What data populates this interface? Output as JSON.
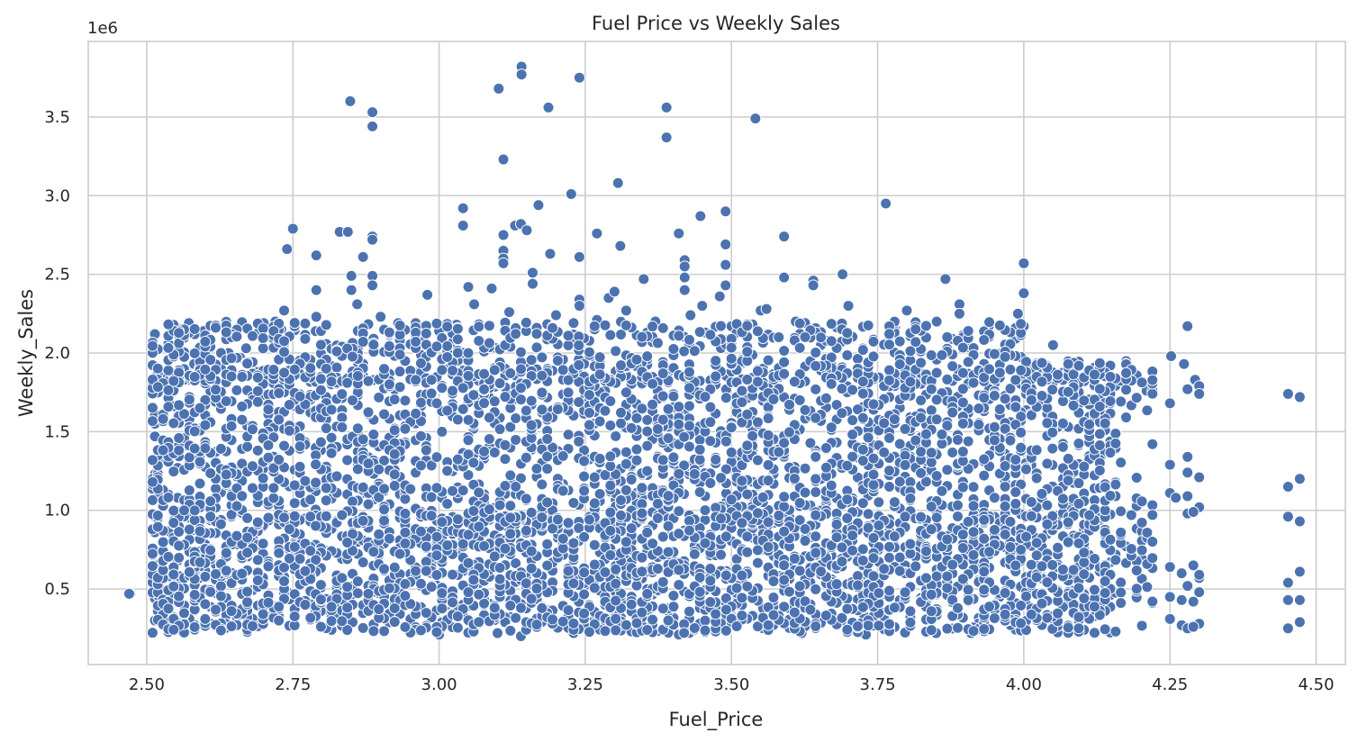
{
  "chart_data": {
    "type": "scatter",
    "title": "Fuel Price vs Weekly Sales",
    "xlabel": "Fuel_Price",
    "ylabel": "Weekly_Sales",
    "y_offset_label": "1e6",
    "xlim": [
      2.4,
      4.55
    ],
    "ylim": [
      0.02,
      3.98
    ],
    "y_scale": 1000000,
    "xticks": [
      2.5,
      2.75,
      3.0,
      3.25,
      3.5,
      3.75,
      4.0,
      4.25,
      4.5
    ],
    "xtick_labels": [
      "2.50",
      "2.75",
      "3.00",
      "3.25",
      "3.50",
      "3.75",
      "4.00",
      "4.25",
      "4.50"
    ],
    "yticks": [
      0.5,
      1.0,
      1.5,
      2.0,
      2.5,
      3.0,
      3.5
    ],
    "ytick_labels": [
      "0.5",
      "1.0",
      "1.5",
      "2.0",
      "2.5",
      "3.0",
      "3.5"
    ],
    "grid": true,
    "legend": "none",
    "colors": {
      "point": "#4c72b0",
      "point_edge": "#ffffff",
      "grid": "#cccccc",
      "spine": "#cccccc"
    },
    "series": [
      {
        "values_note_unit": "Weekly_Sales in units of 1e6",
        "points": [
          [
            2.472,
            0.47
          ],
          [
            2.514,
            2.12
          ],
          [
            2.514,
            1.61
          ],
          [
            2.514,
            1.55
          ],
          [
            2.514,
            1.47
          ],
          [
            2.514,
            1.23
          ],
          [
            2.514,
            0.96
          ],
          [
            2.514,
            0.86
          ],
          [
            2.514,
            0.66
          ],
          [
            2.514,
            0.51
          ],
          [
            2.514,
            0.44
          ],
          [
            2.514,
            0.3
          ],
          [
            2.542,
            2.05
          ],
          [
            2.55,
            2.14
          ],
          [
            2.553,
            1.64
          ],
          [
            2.553,
            1.6
          ],
          [
            2.553,
            1.27
          ],
          [
            2.553,
            1.08
          ],
          [
            2.553,
            0.99
          ],
          [
            2.553,
            0.68
          ],
          [
            2.553,
            0.54
          ],
          [
            2.553,
            0.31
          ],
          [
            2.572,
            2.19
          ],
          [
            2.575,
            2.14
          ],
          [
            2.581,
            1.93
          ],
          [
            2.598,
            2.14
          ],
          [
            2.56,
            1.86
          ],
          [
            2.57,
            1.83
          ],
          [
            2.59,
            1.9
          ],
          [
            2.61,
            1.85
          ],
          [
            2.63,
            1.99
          ],
          [
            2.64,
            2.0
          ],
          [
            2.66,
            1.97
          ],
          [
            2.67,
            2.03
          ],
          [
            2.69,
            1.88
          ],
          [
            2.7,
            2.19
          ],
          [
            2.72,
            2.2
          ],
          [
            2.73,
            2.15
          ],
          [
            2.735,
            2.27
          ],
          [
            2.74,
            2.66
          ],
          [
            2.75,
            2.79
          ],
          [
            2.77,
            2.19
          ],
          [
            2.79,
            2.62
          ],
          [
            2.79,
            2.4
          ],
          [
            2.79,
            2.23
          ],
          [
            2.83,
            2.77
          ],
          [
            2.844,
            2.77
          ],
          [
            2.848,
            3.6
          ],
          [
            2.85,
            2.49
          ],
          [
            2.85,
            2.4
          ],
          [
            2.86,
            2.31
          ],
          [
            2.87,
            2.61
          ],
          [
            2.886,
            3.53
          ],
          [
            2.886,
            3.44
          ],
          [
            2.886,
            2.74
          ],
          [
            2.886,
            2.72
          ],
          [
            2.886,
            2.49
          ],
          [
            2.886,
            2.43
          ],
          [
            2.9,
            2.23
          ],
          [
            2.93,
            2.19
          ],
          [
            2.96,
            2.19
          ],
          [
            2.98,
            2.37
          ],
          [
            3.0,
            2.14
          ],
          [
            3.03,
            2.18
          ],
          [
            3.041,
            2.92
          ],
          [
            3.041,
            2.81
          ],
          [
            3.05,
            2.42
          ],
          [
            3.06,
            2.31
          ],
          [
            3.09,
            2.41
          ],
          [
            3.102,
            3.68
          ],
          [
            3.11,
            3.23
          ],
          [
            3.11,
            2.75
          ],
          [
            3.11,
            2.65
          ],
          [
            3.11,
            2.6
          ],
          [
            3.11,
            2.57
          ],
          [
            3.12,
            2.26
          ],
          [
            3.13,
            2.81
          ],
          [
            3.141,
            3.82
          ],
          [
            3.141,
            3.77
          ],
          [
            3.14,
            2.82
          ],
          [
            3.15,
            2.78
          ],
          [
            3.16,
            2.51
          ],
          [
            3.16,
            2.44
          ],
          [
            3.17,
            2.94
          ],
          [
            3.187,
            3.56
          ],
          [
            3.19,
            2.63
          ],
          [
            3.2,
            2.24
          ],
          [
            3.226,
            3.01
          ],
          [
            3.24,
            3.75
          ],
          [
            3.24,
            2.61
          ],
          [
            3.24,
            2.34
          ],
          [
            3.24,
            2.3
          ],
          [
            3.27,
            2.76
          ],
          [
            3.27,
            2.21
          ],
          [
            3.29,
            2.35
          ],
          [
            3.3,
            2.39
          ],
          [
            3.306,
            3.08
          ],
          [
            3.31,
            2.68
          ],
          [
            3.32,
            2.27
          ],
          [
            3.35,
            2.47
          ],
          [
            3.37,
            2.2
          ],
          [
            3.389,
            3.56
          ],
          [
            3.389,
            3.37
          ],
          [
            3.41,
            2.76
          ],
          [
            3.42,
            2.59
          ],
          [
            3.42,
            2.55
          ],
          [
            3.42,
            2.48
          ],
          [
            3.42,
            2.4
          ],
          [
            3.43,
            2.24
          ],
          [
            3.447,
            2.87
          ],
          [
            3.45,
            2.3
          ],
          [
            3.48,
            2.36
          ],
          [
            3.49,
            2.9
          ],
          [
            3.49,
            2.69
          ],
          [
            3.49,
            2.56
          ],
          [
            3.49,
            2.43
          ],
          [
            3.5,
            2.17
          ],
          [
            3.541,
            3.49
          ],
          [
            3.55,
            2.27
          ],
          [
            3.56,
            2.28
          ],
          [
            3.59,
            2.74
          ],
          [
            3.59,
            2.48
          ],
          [
            3.61,
            2.2
          ],
          [
            3.64,
            2.46
          ],
          [
            3.64,
            2.43
          ],
          [
            3.69,
            2.5
          ],
          [
            3.7,
            2.3
          ],
          [
            3.764,
            2.95
          ],
          [
            3.78,
            2.17
          ],
          [
            3.8,
            2.27
          ],
          [
            3.866,
            2.47
          ],
          [
            3.89,
            2.31
          ],
          [
            3.89,
            2.25
          ],
          [
            3.94,
            2.17
          ],
          [
            3.99,
            2.25
          ],
          [
            4.0,
            2.57
          ],
          [
            4.0,
            2.38
          ],
          [
            4.0,
            2.17
          ],
          [
            4.05,
            2.05
          ],
          [
            4.14,
            1.89
          ],
          [
            4.21,
            1.76
          ],
          [
            4.252,
            1.98
          ],
          [
            4.274,
            1.93
          ],
          [
            4.28,
            2.17
          ],
          [
            4.28,
            1.77
          ],
          [
            4.293,
            1.83
          ],
          [
            4.3,
            1.79
          ],
          [
            4.3,
            1.74
          ],
          [
            4.452,
            1.74
          ],
          [
            4.472,
            1.72
          ],
          [
            4.472,
            1.2
          ],
          [
            4.452,
            1.15
          ],
          [
            4.452,
            0.96
          ],
          [
            4.472,
            0.93
          ],
          [
            4.472,
            0.61
          ],
          [
            4.452,
            0.54
          ],
          [
            4.452,
            0.43
          ],
          [
            4.472,
            0.43
          ],
          [
            4.472,
            0.29
          ],
          [
            4.452,
            0.25
          ],
          [
            4.25,
            1.68
          ],
          [
            4.25,
            1.29
          ],
          [
            4.25,
            1.11
          ],
          [
            4.26,
            1.08
          ],
          [
            4.28,
            1.34
          ],
          [
            4.28,
            1.24
          ],
          [
            4.28,
            1.09
          ],
          [
            4.28,
            0.98
          ],
          [
            4.3,
            1.21
          ],
          [
            4.3,
            1.02
          ],
          [
            4.29,
            0.99
          ],
          [
            4.25,
            0.64
          ],
          [
            4.27,
            0.6
          ],
          [
            4.28,
            0.52
          ],
          [
            4.29,
            0.65
          ],
          [
            4.3,
            0.57
          ],
          [
            4.3,
            0.59
          ],
          [
            4.25,
            0.45
          ],
          [
            4.27,
            0.43
          ],
          [
            4.29,
            0.42
          ],
          [
            4.3,
            0.48
          ],
          [
            4.25,
            0.31
          ],
          [
            4.27,
            0.27
          ],
          [
            4.28,
            0.25
          ],
          [
            4.3,
            0.28
          ],
          [
            4.29,
            0.26
          ],
          [
            2.47,
            0.47
          ],
          [
            2.95,
            0.23
          ],
          [
            3.0,
            0.21
          ],
          [
            3.1,
            0.22
          ],
          [
            3.14,
            0.2
          ],
          [
            3.23,
            0.22
          ],
          [
            3.41,
            0.21
          ],
          [
            3.62,
            0.22
          ],
          [
            3.73,
            0.21
          ],
          [
            3.85,
            0.22
          ],
          [
            3.91,
            0.22
          ]
        ]
      }
    ]
  }
}
